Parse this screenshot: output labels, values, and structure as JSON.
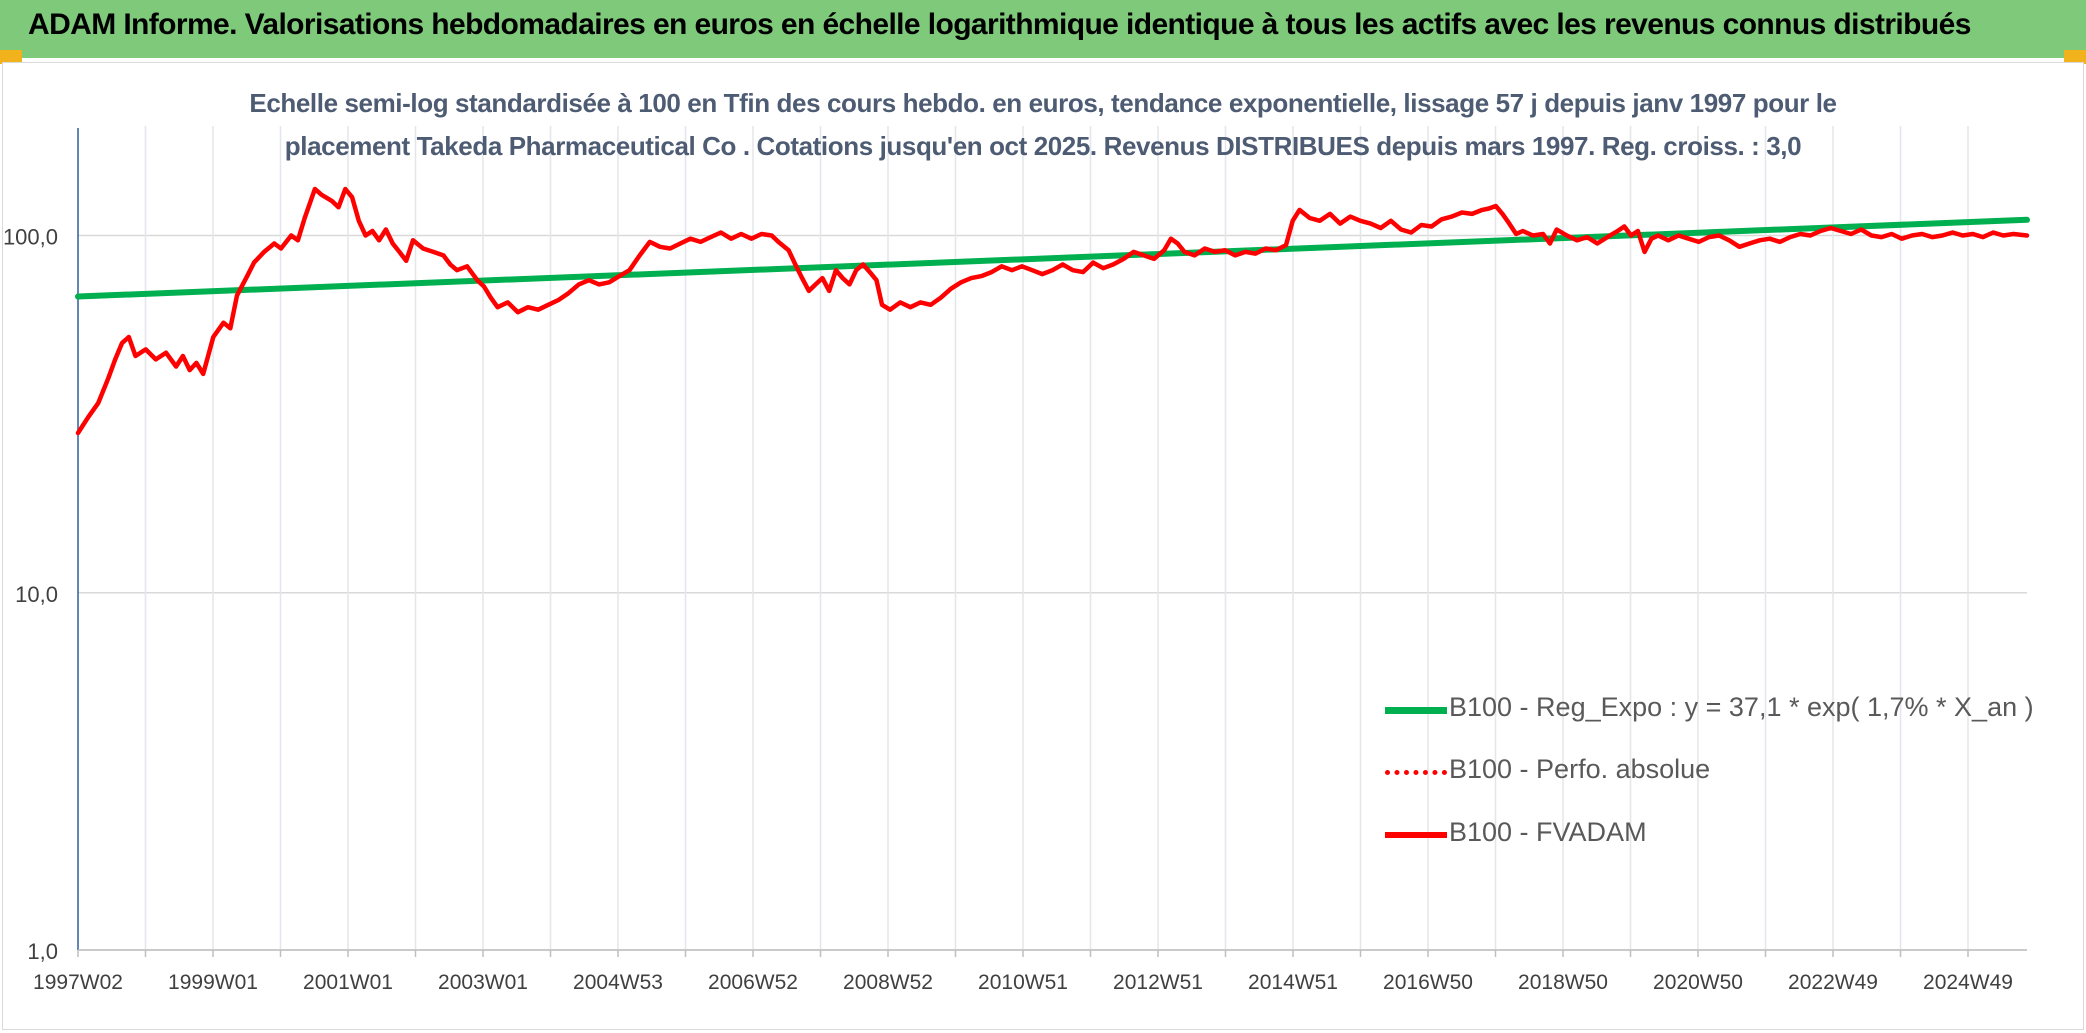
{
  "banner": {
    "title": "ADAM Informe. Valorisations hebdomadaires en euros en échelle logarithmique identique à tous les actifs avec les revenus connus distribués"
  },
  "chart_data": {
    "type": "line",
    "title_line1": "Echelle semi-log standardisée à 100 en Tfin des cours hebdo. en euros, tendance exponentielle, lissage 57 j depuis janv 1997 pour le",
    "title_line2": "placement Takeda Pharmaceutical Co . Cotations jusqu'en oct 2025. Revenus DISTRIBUES depuis mars 1997. Reg. croiss. : 3,0",
    "y_scale": "log",
    "ylim": [
      1,
      200
    ],
    "y_ticks": [
      "1,0",
      "10,0",
      "100,0"
    ],
    "x_start": 1997.0,
    "x_end": 2025.8,
    "x_tick_labels": [
      "1997W02",
      "1999W01",
      "2001W01",
      "2003W01",
      "2004W53",
      "2006W52",
      "2008W52",
      "2010W51",
      "2012W51",
      "2014W51",
      "2016W50",
      "2018W50",
      "2020W50",
      "2022W49",
      "2024W49"
    ],
    "grid": "vertical",
    "legend_position": "lower-right",
    "series": [
      {
        "name": "B100 - Reg_Expo : y = 37,1 * exp( 1,7% *  X_an )",
        "color": "#00b050",
        "style": "solid",
        "points": [
          [
            1997.0,
            67.5
          ],
          [
            2025.8,
            110.7
          ]
        ]
      },
      {
        "name": "B100 - Perfo. absolue",
        "color": "#ff0000",
        "style": "dotted",
        "points": []
      },
      {
        "name": "B100 - FVADAM",
        "color": "#ff0000",
        "style": "solid",
        "points": [
          [
            1997.0,
            28
          ],
          [
            1997.15,
            31
          ],
          [
            1997.3,
            34
          ],
          [
            1997.45,
            40
          ],
          [
            1997.55,
            45
          ],
          [
            1997.65,
            50
          ],
          [
            1997.75,
            52
          ],
          [
            1997.85,
            46
          ],
          [
            1998.0,
            48
          ],
          [
            1998.15,
            45
          ],
          [
            1998.3,
            47
          ],
          [
            1998.45,
            43
          ],
          [
            1998.55,
            46
          ],
          [
            1998.65,
            42
          ],
          [
            1998.75,
            44
          ],
          [
            1998.85,
            41
          ],
          [
            1999.0,
            52
          ],
          [
            1999.15,
            57
          ],
          [
            1999.25,
            55
          ],
          [
            1999.35,
            68
          ],
          [
            1999.5,
            77
          ],
          [
            1999.6,
            84
          ],
          [
            1999.75,
            90
          ],
          [
            1999.9,
            95
          ],
          [
            2000.0,
            92
          ],
          [
            2000.15,
            100
          ],
          [
            2000.25,
            97
          ],
          [
            2000.35,
            112
          ],
          [
            2000.5,
            135
          ],
          [
            2000.6,
            130
          ],
          [
            2000.75,
            125
          ],
          [
            2000.85,
            120
          ],
          [
            2000.95,
            135
          ],
          [
            2001.05,
            128
          ],
          [
            2001.15,
            110
          ],
          [
            2001.25,
            100
          ],
          [
            2001.35,
            103
          ],
          [
            2001.45,
            97
          ],
          [
            2001.55,
            104
          ],
          [
            2001.65,
            95
          ],
          [
            2001.75,
            90
          ],
          [
            2001.85,
            85
          ],
          [
            2001.95,
            97
          ],
          [
            2002.1,
            92
          ],
          [
            2002.25,
            90
          ],
          [
            2002.4,
            88
          ],
          [
            2002.5,
            83
          ],
          [
            2002.6,
            80
          ],
          [
            2002.75,
            82
          ],
          [
            2002.9,
            75
          ],
          [
            2003.0,
            72
          ],
          [
            2003.1,
            67
          ],
          [
            2003.2,
            63
          ],
          [
            2003.35,
            65
          ],
          [
            2003.5,
            61
          ],
          [
            2003.65,
            63
          ],
          [
            2003.8,
            62
          ],
          [
            2003.95,
            64
          ],
          [
            2004.1,
            66
          ],
          [
            2004.25,
            69
          ],
          [
            2004.4,
            73
          ],
          [
            2004.55,
            75
          ],
          [
            2004.7,
            73
          ],
          [
            2004.85,
            74
          ],
          [
            2005.0,
            77
          ],
          [
            2005.15,
            80
          ],
          [
            2005.3,
            88
          ],
          [
            2005.45,
            96
          ],
          [
            2005.6,
            93
          ],
          [
            2005.75,
            92
          ],
          [
            2005.9,
            95
          ],
          [
            2006.05,
            98
          ],
          [
            2006.2,
            96
          ],
          [
            2006.35,
            99
          ],
          [
            2006.5,
            102
          ],
          [
            2006.65,
            98
          ],
          [
            2006.8,
            101
          ],
          [
            2006.95,
            98
          ],
          [
            2007.1,
            101
          ],
          [
            2007.25,
            100
          ],
          [
            2007.35,
            96
          ],
          [
            2007.5,
            91
          ],
          [
            2007.6,
            83
          ],
          [
            2007.7,
            76
          ],
          [
            2007.8,
            70
          ],
          [
            2007.9,
            73
          ],
          [
            2008.0,
            76
          ],
          [
            2008.1,
            70
          ],
          [
            2008.2,
            80
          ],
          [
            2008.3,
            76
          ],
          [
            2008.4,
            73
          ],
          [
            2008.5,
            80
          ],
          [
            2008.6,
            83
          ],
          [
            2008.7,
            79
          ],
          [
            2008.8,
            75
          ],
          [
            2008.88,
            64
          ],
          [
            2009.0,
            62
          ],
          [
            2009.15,
            65
          ],
          [
            2009.3,
            63
          ],
          [
            2009.45,
            65
          ],
          [
            2009.6,
            64
          ],
          [
            2009.75,
            67
          ],
          [
            2009.9,
            71
          ],
          [
            2010.05,
            74
          ],
          [
            2010.2,
            76
          ],
          [
            2010.35,
            77
          ],
          [
            2010.5,
            79
          ],
          [
            2010.65,
            82
          ],
          [
            2010.8,
            80
          ],
          [
            2010.95,
            82
          ],
          [
            2011.1,
            80
          ],
          [
            2011.25,
            78
          ],
          [
            2011.4,
            80
          ],
          [
            2011.55,
            83
          ],
          [
            2011.7,
            80
          ],
          [
            2011.85,
            79
          ],
          [
            2012.0,
            84
          ],
          [
            2012.15,
            81
          ],
          [
            2012.3,
            83
          ],
          [
            2012.45,
            86
          ],
          [
            2012.6,
            90
          ],
          [
            2012.75,
            88
          ],
          [
            2012.9,
            86
          ],
          [
            2013.05,
            91
          ],
          [
            2013.15,
            98
          ],
          [
            2013.25,
            95
          ],
          [
            2013.35,
            90
          ],
          [
            2013.5,
            88
          ],
          [
            2013.65,
            92
          ],
          [
            2013.8,
            90
          ],
          [
            2013.95,
            91
          ],
          [
            2014.1,
            88
          ],
          [
            2014.25,
            90
          ],
          [
            2014.4,
            89
          ],
          [
            2014.55,
            92
          ],
          [
            2014.7,
            91
          ],
          [
            2014.85,
            94
          ],
          [
            2014.95,
            110
          ],
          [
            2015.05,
            118
          ],
          [
            2015.2,
            112
          ],
          [
            2015.35,
            110
          ],
          [
            2015.5,
            115
          ],
          [
            2015.65,
            108
          ],
          [
            2015.8,
            113
          ],
          [
            2015.95,
            110
          ],
          [
            2016.1,
            108
          ],
          [
            2016.25,
            105
          ],
          [
            2016.4,
            110
          ],
          [
            2016.55,
            104
          ],
          [
            2016.7,
            102
          ],
          [
            2016.85,
            107
          ],
          [
            2017.0,
            106
          ],
          [
            2017.15,
            111
          ],
          [
            2017.3,
            113
          ],
          [
            2017.45,
            116
          ],
          [
            2017.6,
            115
          ],
          [
            2017.75,
            118
          ],
          [
            2017.85,
            119
          ],
          [
            2017.95,
            121
          ],
          [
            2018.05,
            115
          ],
          [
            2018.15,
            108
          ],
          [
            2018.25,
            101
          ],
          [
            2018.35,
            103
          ],
          [
            2018.5,
            100
          ],
          [
            2018.65,
            101
          ],
          [
            2018.75,
            95
          ],
          [
            2018.85,
            104
          ],
          [
            2019.0,
            100
          ],
          [
            2019.15,
            97
          ],
          [
            2019.3,
            99
          ],
          [
            2019.45,
            95
          ],
          [
            2019.6,
            99
          ],
          [
            2019.75,
            103
          ],
          [
            2019.85,
            106
          ],
          [
            2019.95,
            100
          ],
          [
            2020.05,
            103
          ],
          [
            2020.15,
            90
          ],
          [
            2020.25,
            98
          ],
          [
            2020.35,
            100
          ],
          [
            2020.5,
            97
          ],
          [
            2020.65,
            100
          ],
          [
            2020.8,
            98
          ],
          [
            2020.95,
            96
          ],
          [
            2021.1,
            99
          ],
          [
            2021.25,
            100
          ],
          [
            2021.4,
            97
          ],
          [
            2021.55,
            93
          ],
          [
            2021.7,
            95
          ],
          [
            2021.85,
            97
          ],
          [
            2022.0,
            98
          ],
          [
            2022.15,
            96
          ],
          [
            2022.3,
            99
          ],
          [
            2022.45,
            101
          ],
          [
            2022.6,
            100
          ],
          [
            2022.75,
            103
          ],
          [
            2022.9,
            105
          ],
          [
            2023.05,
            103
          ],
          [
            2023.2,
            101
          ],
          [
            2023.35,
            104
          ],
          [
            2023.5,
            100
          ],
          [
            2023.65,
            99
          ],
          [
            2023.8,
            101
          ],
          [
            2023.95,
            98
          ],
          [
            2024.1,
            100
          ],
          [
            2024.25,
            101
          ],
          [
            2024.4,
            99
          ],
          [
            2024.55,
            100
          ],
          [
            2024.7,
            102
          ],
          [
            2024.85,
            100
          ],
          [
            2025.0,
            101
          ],
          [
            2025.15,
            99
          ],
          [
            2025.3,
            102
          ],
          [
            2025.45,
            100
          ],
          [
            2025.6,
            101
          ],
          [
            2025.8,
            100
          ]
        ]
      }
    ]
  }
}
